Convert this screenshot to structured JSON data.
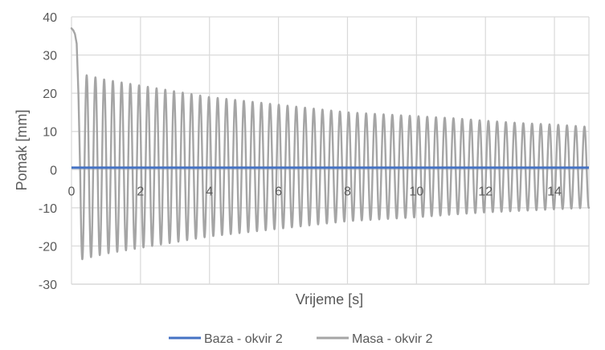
{
  "chart_data": {
    "type": "line",
    "xlabel": "Vrijeme [s]",
    "ylabel": "Pomak [mm]",
    "xlim": [
      0,
      15
    ],
    "ylim": [
      -30,
      40
    ],
    "x_ticks": [
      0,
      2,
      4,
      6,
      8,
      10,
      12,
      14
    ],
    "y_ticks": [
      -30,
      -20,
      -10,
      0,
      10,
      20,
      30,
      40
    ],
    "x_tick_labels": [
      "0",
      "2",
      "4",
      "6",
      "8",
      "10",
      "12",
      "14"
    ],
    "y_tick_labels": [
      "-30",
      "-20",
      "-10",
      "0",
      "10",
      "20",
      "30",
      "40"
    ],
    "grid": true,
    "legend_position": "bottom",
    "series": [
      {
        "name": "Baza - okvir 2",
        "color": "#4472C4",
        "x": [
          0,
          15
        ],
        "y": [
          0.5,
          0.5
        ]
      },
      {
        "name": "Masa - okvir 2",
        "color": "#A5A5A5",
        "description_of_signal": "",
        "initial_segment": {
          "x": [
            0,
            0.05,
            0.1,
            0.15,
            0.2,
            0.25
          ],
          "y": [
            37,
            36.5,
            35.5,
            33,
            20,
            0
          ]
        },
        "oscillation": {
          "frequency_hz": 3.95,
          "envelope_points": [
            {
              "x": 0.3,
              "max": 25,
              "min": -23.5
            },
            {
              "x": 1,
              "max": 23.5,
              "min": -22
            },
            {
              "x": 2,
              "max": 22,
              "min": -20.5
            },
            {
              "x": 3,
              "max": 20.5,
              "min": -19
            },
            {
              "x": 4,
              "max": 19,
              "min": -17.5
            },
            {
              "x": 5,
              "max": 18,
              "min": -16.5
            },
            {
              "x": 6,
              "max": 17,
              "min": -15.5
            },
            {
              "x": 7,
              "max": 16,
              "min": -14.5
            },
            {
              "x": 8,
              "max": 15,
              "min": -13.5
            },
            {
              "x": 9,
              "max": 14.5,
              "min": -13
            },
            {
              "x": 10,
              "max": 14,
              "min": -12.5
            },
            {
              "x": 11,
              "max": 13.5,
              "min": -11.8
            },
            {
              "x": 12,
              "max": 12.8,
              "min": -11.2
            },
            {
              "x": 13,
              "max": 12.2,
              "min": -10.8
            },
            {
              "x": 14,
              "max": 11.8,
              "min": -10.4
            },
            {
              "x": 15,
              "max": 11.2,
              "min": -10
            }
          ]
        }
      }
    ]
  },
  "colors": {
    "grid": "#D9D9D9",
    "axis": "#BFBFBF",
    "text": "#595959"
  }
}
